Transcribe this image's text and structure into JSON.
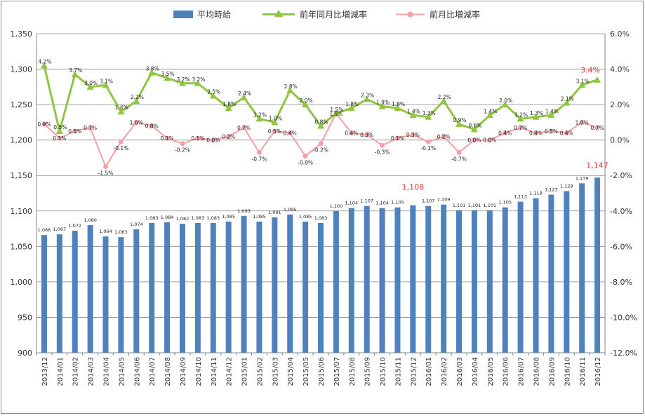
{
  "chart_data": {
    "type": "bar",
    "categories": [
      "2013/12",
      "2014/01",
      "2014/02",
      "2014/03",
      "2014/04",
      "2014/05",
      "2014/06",
      "2014/07",
      "2014/08",
      "2014/09",
      "2014/10",
      "2014/11",
      "2014/12",
      "2015/01",
      "2015/02",
      "2015/03",
      "2015/04",
      "2015/05",
      "2015/06",
      "2015/07",
      "2015/08",
      "2015/09",
      "2015/10",
      "2015/11",
      "2015/12",
      "2016/01",
      "2016/02",
      "2016/03",
      "2016/04",
      "2016/05",
      "2016/06",
      "2016/07",
      "2016/08",
      "2016/09",
      "2016/10",
      "2016/11",
      "2016/12"
    ],
    "series": [
      {
        "name": "平均時給",
        "type": "bar",
        "axis": "left",
        "values": [
          1066,
          1067,
          1072,
          1080,
          1064,
          1063,
          1074,
          1083,
          1084,
          1082,
          1083,
          1083,
          1085,
          1093,
          1085,
          1091,
          1095,
          1085,
          1083,
          1100,
          1104,
          1107,
          1104,
          1105,
          1108,
          1107,
          1109,
          1101,
          1101,
          1101,
          1105,
          1113,
          1118,
          1123,
          1128,
          1139,
          1147
        ],
        "labels": [
          "1,066",
          "1,067",
          "1,072",
          "1,080",
          "1,064",
          "1,063",
          "1,074",
          "1,083",
          "1,084",
          "1,082",
          "1,083",
          "1,083",
          "1,085",
          "1,093",
          "1,085",
          "1,091",
          "1,095",
          "1,085",
          "1,083",
          "1,100",
          "1,104",
          "1,107",
          "1,104",
          "1,105",
          "1,108",
          "1,107",
          "1,109",
          "1,101",
          "1,101",
          "1,101",
          "1,105",
          "1,113",
          "1,118",
          "1,123",
          "1,128",
          "1,139",
          "1,147"
        ],
        "highlight_indices": [
          24,
          36
        ]
      },
      {
        "name": "前年同月比増減率",
        "type": "line",
        "axis": "right",
        "values": [
          4.2,
          0.5,
          3.7,
          3.0,
          3.1,
          1.6,
          2.2,
          3.8,
          3.5,
          3.2,
          3.2,
          2.5,
          1.8,
          2.4,
          1.2,
          1.0,
          2.8,
          2.0,
          0.8,
          1.5,
          1.8,
          2.3,
          1.9,
          1.8,
          1.4,
          1.3,
          2.2,
          0.9,
          0.6,
          1.4,
          2.0,
          1.2,
          1.3,
          1.4,
          2.1,
          3.1,
          3.4
        ],
        "labels": [
          "4.2%",
          "0.5%",
          "3.7%",
          "3.0%",
          "3.1%",
          "1.6%",
          "2.2%",
          "3.8%",
          "3.5%",
          "3.2%",
          "3.2%",
          "2.5%",
          "1.8%",
          "2.4%",
          "1.2%",
          "1.0%",
          "2.8%",
          "2.0%",
          "0.8%",
          "1.5%",
          "1.8%",
          "2.3%",
          "1.9%",
          "1.8%",
          "1.4%",
          "1.3%",
          "2.2%",
          "0.9%",
          "0.6%",
          "1.4%",
          "2.0%",
          "1.2%",
          "1.3%",
          "1.4%",
          "2.1%",
          "3.1%",
          "3.4%"
        ],
        "highlight_indices": [
          36
        ]
      },
      {
        "name": "前月比増減率",
        "type": "line",
        "axis": "right",
        "values": [
          0.9,
          0.1,
          0.5,
          0.7,
          -1.5,
          -0.1,
          1.0,
          0.8,
          0.1,
          -0.2,
          0.1,
          0.0,
          0.2,
          0.7,
          -0.7,
          0.5,
          0.4,
          -0.9,
          -0.2,
          1.5,
          0.4,
          0.3,
          -0.3,
          0.1,
          0.3,
          -0.1,
          0.2,
          -0.7,
          0.0,
          0.0,
          0.4,
          0.7,
          0.4,
          0.5,
          0.4,
          1.0,
          0.7
        ],
        "labels": [
          "0.9%",
          "0.1%",
          "0.5%",
          "0.7%",
          "-1.5%",
          "-0.1%",
          "1.0%",
          "0.8%",
          "0.1%",
          "-0.2%",
          "0.1%",
          "0.0%",
          "0.2%",
          "0.7%",
          "-0.7%",
          "0.5%",
          "0.4%",
          "-0.9%",
          "-0.2%",
          "1.5%",
          "0.4%",
          "0.3%",
          "-0.3%",
          "0.1%",
          "0.3%",
          "-0.1%",
          "0.2%",
          "-0.7%",
          "0.0%",
          "0.0%",
          "0.4%",
          "0.7%",
          "0.4%",
          "0.5%",
          "0.4%",
          "1.0%",
          "0.7%"
        ]
      }
    ],
    "y_left": {
      "range": [
        900,
        1350
      ],
      "ticks": [
        "900",
        "950",
        "1,000",
        "1,050",
        "1,100",
        "1,150",
        "1,200",
        "1,250",
        "1,300",
        "1,350"
      ]
    },
    "y_right": {
      "range": [
        -12.0,
        6.0
      ],
      "ticks": [
        "-12.0%",
        "-10.0%",
        "-8.0%",
        "-6.0%",
        "-4.0%",
        "-2.0%",
        "0.0%",
        "2.0%",
        "4.0%",
        "6.0%"
      ]
    },
    "grid": true,
    "legend_position": "top",
    "colors": {
      "bar": "#4f81bd",
      "yoy_line": "#8ec63f",
      "mom_line": "#f4a0a4",
      "highlight": "#e03a2f",
      "grid": "#868686"
    }
  }
}
